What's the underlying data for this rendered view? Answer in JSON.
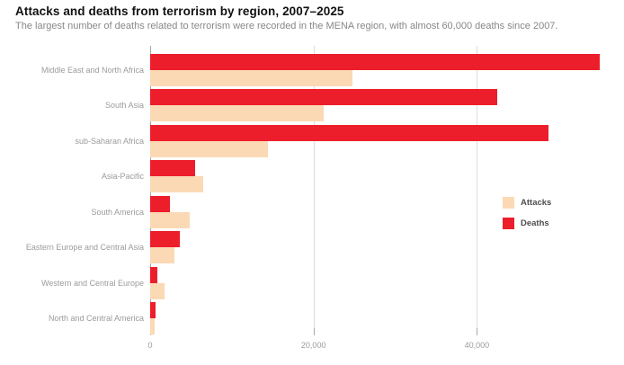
{
  "chart_data": {
    "type": "bar",
    "orientation": "horizontal",
    "title": "Attacks and deaths from terrorism by region, 2007–2025",
    "subtitle": "The largest number of deaths related to terrorism were recorded in the MENA region, with almost 60,000 deaths since 2007.",
    "categories": [
      "Middle East and North Africa",
      "South Asia",
      "sub-Saharan Africa",
      "Asia-Pacific",
      "South America",
      "Eastern Europe and Central Asia",
      "Western and Central Europe",
      "North and Central America"
    ],
    "series": [
      {
        "name": "Deaths",
        "color": "#ED1E2B",
        "values": [
          55000,
          42500,
          48800,
          5450,
          2400,
          3600,
          900,
          650
        ]
      },
      {
        "name": "Attacks",
        "color": "#FBD9B4",
        "values": [
          24800,
          21200,
          14400,
          6450,
          4850,
          2950,
          1800,
          500
        ]
      }
    ],
    "bar_order_top_to_bottom": [
      "Deaths",
      "Attacks"
    ],
    "x_axis": {
      "min": 0,
      "max": 57400,
      "ticks": [
        0,
        20000,
        40000
      ],
      "tick_labels": [
        "0",
        "20,000",
        "40,000"
      ],
      "gridlines": true
    },
    "legend": {
      "position": "middle-right",
      "entries": [
        {
          "label": "Attacks",
          "color": "#FBD9B4"
        },
        {
          "label": "Deaths",
          "color": "#ED1E2B"
        }
      ]
    },
    "colors": {
      "zero_axis_line": "#A6A6A6",
      "gridline": "#DDDDDD",
      "tick_stub": "#AAAAAA",
      "category_label": "#9B9B9B",
      "tick_label": "#9B9B9B",
      "title_text": "#111111",
      "subtitle_text": "#878787",
      "legend_text": "#4D4D4D"
    }
  }
}
